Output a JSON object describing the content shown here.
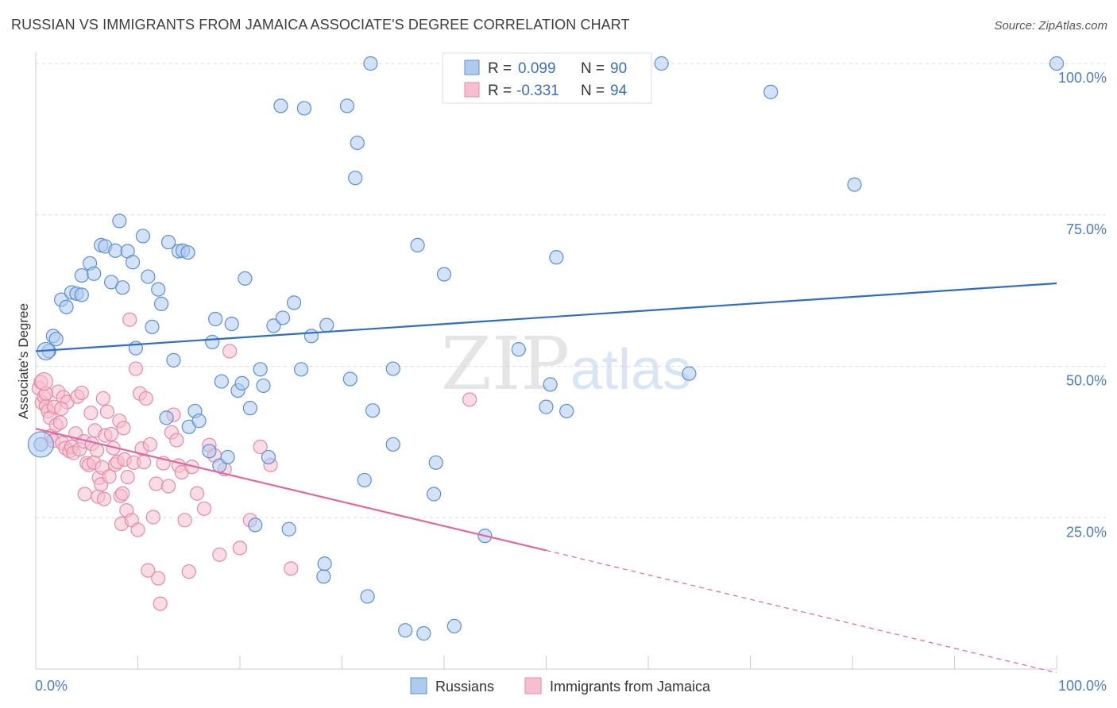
{
  "title": "RUSSIAN VS IMMIGRANTS FROM JAMAICA ASSOCIATE'S DEGREE CORRELATION CHART",
  "source": "Source: ZipAtlas.com",
  "watermark": {
    "zip": "ZIP",
    "atlas": "atlas"
  },
  "colors": {
    "blue_fill": "#aecbee",
    "blue_stroke": "#5b8fd6",
    "blue_line": "#2d6cc8",
    "pink_fill": "#f6bfd0",
    "pink_stroke": "#e58aa8",
    "pink_line": "#e0689a",
    "grid": "#dddddd",
    "tick_text": "#4a7cc7"
  },
  "stats": [
    {
      "r_label": "R =",
      "r_value": "0.099",
      "n_label": "N =",
      "n_value": "90"
    },
    {
      "r_label": "R =",
      "r_value": "-0.331",
      "n_label": "N =",
      "n_value": "94"
    }
  ],
  "legend": [
    {
      "name": "Russians"
    },
    {
      "name": "Immigrants from Jamaica"
    }
  ],
  "chart_data": {
    "type": "scatter",
    "title": "RUSSIAN VS IMMIGRANTS FROM JAMAICA ASSOCIATE'S DEGREE CORRELATION CHART",
    "xlabel": "",
    "ylabel": "Associate's Degree",
    "xlim": [
      0,
      100
    ],
    "ylim": [
      0,
      100
    ],
    "x_tick_labels": [
      "0.0%",
      "100.0%"
    ],
    "y_tick_labels": [
      "100.0%",
      "75.0%",
      "50.0%",
      "25.0%"
    ],
    "y_ticks": [
      100,
      75,
      50,
      25
    ],
    "grid": true,
    "legend_position": "bottom",
    "series": [
      {
        "name": "Russians",
        "trend": {
          "x": [
            0,
            100
          ],
          "y": [
            52.5,
            63.7
          ]
        },
        "points": [
          [
            1.3,
            52.5
          ],
          [
            1.7,
            55.0
          ],
          [
            2.0,
            54.5
          ],
          [
            2.5,
            61.0
          ],
          [
            3.0,
            59.8
          ],
          [
            3.5,
            62.2
          ],
          [
            4.0,
            62.0
          ],
          [
            4.5,
            61.8
          ],
          [
            4.5,
            65.0
          ],
          [
            5.3,
            67.0
          ],
          [
            5.7,
            65.3
          ],
          [
            6.4,
            70.0
          ],
          [
            6.8,
            69.8
          ],
          [
            7.4,
            63.9
          ],
          [
            7.8,
            69.1
          ],
          [
            8.2,
            74.0
          ],
          [
            8.5,
            63.0
          ],
          [
            9.0,
            69.0
          ],
          [
            9.5,
            67.2
          ],
          [
            9.8,
            53.0
          ],
          [
            10.5,
            71.5
          ],
          [
            11.0,
            64.8
          ],
          [
            11.4,
            56.5
          ],
          [
            12.0,
            62.7
          ],
          [
            12.3,
            60.3
          ],
          [
            12.8,
            41.5
          ],
          [
            13.0,
            70.5
          ],
          [
            13.5,
            51.0
          ],
          [
            14.0,
            69.0
          ],
          [
            14.4,
            69.1
          ],
          [
            14.9,
            68.8
          ],
          [
            15.0,
            40.0
          ],
          [
            15.6,
            42.6
          ],
          [
            16.0,
            41.0
          ],
          [
            17.0,
            36.0
          ],
          [
            17.3,
            54.0
          ],
          [
            17.6,
            57.8
          ],
          [
            18.0,
            33.6
          ],
          [
            18.2,
            47.5
          ],
          [
            18.8,
            35.0
          ],
          [
            19.2,
            57.0
          ],
          [
            19.8,
            46.0
          ],
          [
            20.2,
            47.2
          ],
          [
            20.5,
            64.5
          ],
          [
            21.0,
            43.1
          ],
          [
            21.5,
            23.8
          ],
          [
            22.0,
            49.5
          ],
          [
            22.3,
            46.8
          ],
          [
            22.8,
            35.0
          ],
          [
            23.3,
            56.7
          ],
          [
            24.0,
            93.0
          ],
          [
            24.2,
            58.0
          ],
          [
            24.8,
            23.1
          ],
          [
            25.3,
            60.5
          ],
          [
            26.0,
            49.5
          ],
          [
            26.3,
            92.6
          ],
          [
            27.0,
            55.0
          ],
          [
            28.2,
            15.3
          ],
          [
            28.5,
            56.8
          ],
          [
            28.3,
            17.4
          ],
          [
            30.5,
            93.0
          ],
          [
            30.8,
            47.9
          ],
          [
            31.5,
            86.9
          ],
          [
            31.3,
            81.1
          ],
          [
            32.2,
            31.2
          ],
          [
            32.5,
            12.0
          ],
          [
            32.8,
            100.0
          ],
          [
            33.0,
            42.7
          ],
          [
            35.0,
            49.6
          ],
          [
            35.0,
            37.1
          ],
          [
            36.2,
            6.4
          ],
          [
            37.4,
            70.0
          ],
          [
            38.0,
            5.9
          ],
          [
            39.0,
            28.9
          ],
          [
            39.2,
            34.1
          ],
          [
            40.0,
            65.2
          ],
          [
            41.0,
            7.1
          ],
          [
            44.0,
            22.0
          ],
          [
            47.3,
            52.8
          ],
          [
            50.0,
            43.3
          ],
          [
            50.4,
            47.0
          ],
          [
            51.0,
            68.0
          ],
          [
            52.0,
            42.6
          ],
          [
            59.3,
            100.0
          ],
          [
            61.3,
            100.0
          ],
          [
            64.0,
            48.8
          ],
          [
            72.0,
            95.3
          ],
          [
            80.2,
            80.0
          ],
          [
            100.0,
            100.0
          ],
          [
            0.5,
            37.1
          ]
        ]
      },
      {
        "name": "Immigrants from Jamaica",
        "trend": {
          "x": [
            0,
            50
          ],
          "y": [
            39.7,
            19.6
          ]
        },
        "trend_extension": {
          "x": [
            50,
            100
          ],
          "y": [
            19.6,
            -0.6
          ]
        },
        "points": [
          [
            0.3,
            46.4
          ],
          [
            0.5,
            47.4
          ],
          [
            0.6,
            44.0
          ],
          [
            0.8,
            45.0
          ],
          [
            1.0,
            43.4
          ],
          [
            1.2,
            42.6
          ],
          [
            1.4,
            41.5
          ],
          [
            1.5,
            38.5
          ],
          [
            1.7,
            37.7
          ],
          [
            1.8,
            43.3
          ],
          [
            2.0,
            40.3
          ],
          [
            2.2,
            45.8
          ],
          [
            2.4,
            40.7
          ],
          [
            2.6,
            37.3
          ],
          [
            2.7,
            44.9
          ],
          [
            2.9,
            36.5
          ],
          [
            3.1,
            44.1
          ],
          [
            3.3,
            36.0
          ],
          [
            3.5,
            36.7
          ],
          [
            3.7,
            35.7
          ],
          [
            3.9,
            38.9
          ],
          [
            4.1,
            45.0
          ],
          [
            4.3,
            36.3
          ],
          [
            4.5,
            45.6
          ],
          [
            4.7,
            37.6
          ],
          [
            4.8,
            28.9
          ],
          [
            5.0,
            34.0
          ],
          [
            5.2,
            33.7
          ],
          [
            5.4,
            42.3
          ],
          [
            5.5,
            37.2
          ],
          [
            5.7,
            34.1
          ],
          [
            5.8,
            39.4
          ],
          [
            6.0,
            36.1
          ],
          [
            6.1,
            28.5
          ],
          [
            6.2,
            31.6
          ],
          [
            6.4,
            30.5
          ],
          [
            6.5,
            33.3
          ],
          [
            6.6,
            44.7
          ],
          [
            6.7,
            28.1
          ],
          [
            6.8,
            38.6
          ],
          [
            7.0,
            42.5
          ],
          [
            7.2,
            31.8
          ],
          [
            7.4,
            38.8
          ],
          [
            7.6,
            36.5
          ],
          [
            7.8,
            33.8
          ],
          [
            8.0,
            34.2
          ],
          [
            8.2,
            41.0
          ],
          [
            8.3,
            28.6
          ],
          [
            8.4,
            24.0
          ],
          [
            8.5,
            29.0
          ],
          [
            8.6,
            39.8
          ],
          [
            8.7,
            34.6
          ],
          [
            8.9,
            26.2
          ],
          [
            9.0,
            31.7
          ],
          [
            9.2,
            57.7
          ],
          [
            9.4,
            24.6
          ],
          [
            9.6,
            34.1
          ],
          [
            9.8,
            49.6
          ],
          [
            10.0,
            23.0
          ],
          [
            10.2,
            45.5
          ],
          [
            10.4,
            36.4
          ],
          [
            10.6,
            34.2
          ],
          [
            10.8,
            44.7
          ],
          [
            11.0,
            16.3
          ],
          [
            11.2,
            37.1
          ],
          [
            11.5,
            25.1
          ],
          [
            11.8,
            30.6
          ],
          [
            12.0,
            15.0
          ],
          [
            12.2,
            10.8
          ],
          [
            12.5,
            34.0
          ],
          [
            13.0,
            30.2
          ],
          [
            13.3,
            39.1
          ],
          [
            13.5,
            42.0
          ],
          [
            13.8,
            37.8
          ],
          [
            14.0,
            33.6
          ],
          [
            14.3,
            32.5
          ],
          [
            14.6,
            24.6
          ],
          [
            15.0,
            16.1
          ],
          [
            15.3,
            33.4
          ],
          [
            15.8,
            29.0
          ],
          [
            16.5,
            26.5
          ],
          [
            17.0,
            37.0
          ],
          [
            17.5,
            35.3
          ],
          [
            18.0,
            18.9
          ],
          [
            18.5,
            33.0
          ],
          [
            19.0,
            52.5
          ],
          [
            20.0,
            20.0
          ],
          [
            21.0,
            24.6
          ],
          [
            22.0,
            36.7
          ],
          [
            23.0,
            33.7
          ],
          [
            25.0,
            16.6
          ],
          [
            42.5,
            44.5
          ],
          [
            1.0,
            45.5
          ],
          [
            2.5,
            43.0
          ]
        ]
      }
    ]
  }
}
